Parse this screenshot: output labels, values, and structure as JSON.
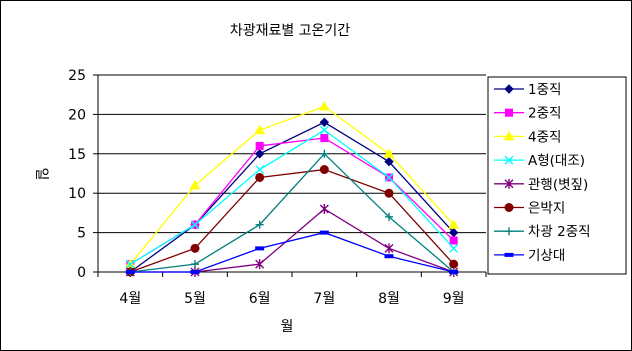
{
  "chart_data": {
    "type": "line",
    "title": "차광재료별 고온기간",
    "xlabel": "월",
    "ylabel": "일",
    "categories": [
      "4월",
      "5월",
      "6월",
      "7월",
      "8월",
      "9월"
    ],
    "ylim": [
      0,
      25
    ],
    "yticks": [
      0,
      5,
      10,
      15,
      20,
      25
    ],
    "grid": true,
    "legend_position": "right",
    "series": [
      {
        "name": "1중직",
        "values": [
          0,
          6,
          15,
          19,
          14,
          5
        ],
        "color": "#000080",
        "marker": "diamond"
      },
      {
        "name": "2중직",
        "values": [
          1,
          6,
          16,
          17,
          12,
          4
        ],
        "color": "#ff00ff",
        "marker": "square"
      },
      {
        "name": "4중직",
        "values": [
          1,
          11,
          18,
          21,
          15,
          6
        ],
        "color": "#ffff00",
        "marker": "triangle"
      },
      {
        "name": "A형(대조)",
        "values": [
          1,
          6,
          13,
          18,
          12,
          3
        ],
        "color": "#00ffff",
        "marker": "x"
      },
      {
        "name": "관행(볏짚)",
        "values": [
          0,
          0,
          1,
          8,
          3,
          0
        ],
        "color": "#800080",
        "marker": "star"
      },
      {
        "name": "은박지",
        "values": [
          0,
          3,
          12,
          13,
          10,
          1
        ],
        "color": "#800000",
        "marker": "circle"
      },
      {
        "name": "차광 2중직",
        "values": [
          0,
          1,
          6,
          15,
          7,
          0
        ],
        "color": "#008080",
        "marker": "plus"
      },
      {
        "name": "기상대",
        "values": [
          0,
          0,
          3,
          5,
          2,
          0
        ],
        "color": "#0000ff",
        "marker": "dash"
      }
    ]
  }
}
